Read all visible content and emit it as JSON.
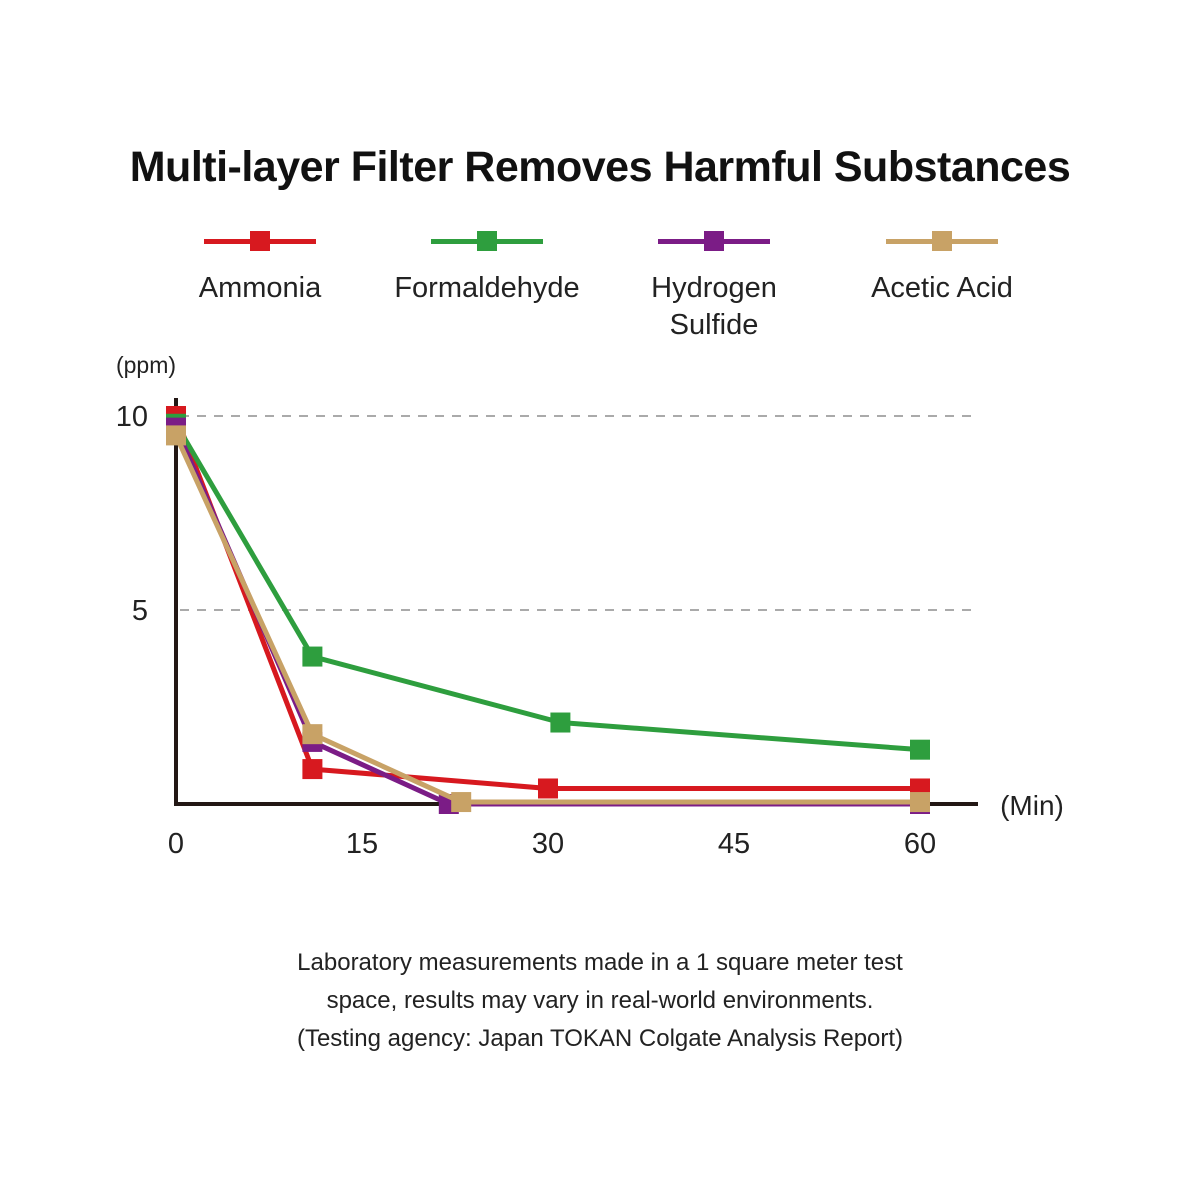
{
  "chart_data": {
    "type": "line",
    "title": "Multi-layer Filter Removes Harmful Substances",
    "ylabel": "(ppm)",
    "xlabel": "(Min)",
    "x_ticks": [
      0,
      15,
      30,
      45,
      60
    ],
    "y_ticks": [
      5,
      10
    ],
    "xlim": [
      0,
      65
    ],
    "ylim": [
      0,
      10
    ],
    "grid": "dashed horizontal at 5 and 10",
    "legend_position": "top",
    "series": [
      {
        "name": "Ammonia",
        "color": "#d7191f",
        "points": [
          [
            0,
            10.0
          ],
          [
            11,
            0.9
          ],
          [
            30,
            0.4
          ],
          [
            60,
            0.4
          ]
        ]
      },
      {
        "name": "Formaldehyde",
        "color": "#2e9e3e",
        "points": [
          [
            0,
            9.8
          ],
          [
            11,
            3.8
          ],
          [
            31,
            2.1
          ],
          [
            60,
            1.4
          ]
        ]
      },
      {
        "name": "Hydrogen Sulfide",
        "color": "#7b1c86",
        "points": [
          [
            0,
            9.7
          ],
          [
            11,
            1.6
          ],
          [
            22,
            0.0
          ],
          [
            60,
            0.0
          ]
        ]
      },
      {
        "name": "Acetic Acid",
        "color": "#c8a266",
        "points": [
          [
            0,
            9.5
          ],
          [
            11,
            1.8
          ],
          [
            23,
            0.05
          ],
          [
            60,
            0.05
          ]
        ]
      }
    ]
  },
  "legend": [
    {
      "label": "Ammonia",
      "color": "#d7191f"
    },
    {
      "label": "Formaldehyde",
      "color": "#2e9e3e"
    },
    {
      "label": "Hydrogen Sulfide",
      "label_line1": "Hydrogen",
      "label_line2": "Sulfide",
      "color": "#7b1c86"
    },
    {
      "label": "Acetic Acid",
      "color": "#c8a266"
    }
  ],
  "footnote": {
    "line1": "Laboratory measurements made in a 1 square meter test",
    "line2": "space, results may vary in real-world environments.",
    "line3": "(Testing agency: Japan TOKAN Colgate Analysis Report)"
  }
}
